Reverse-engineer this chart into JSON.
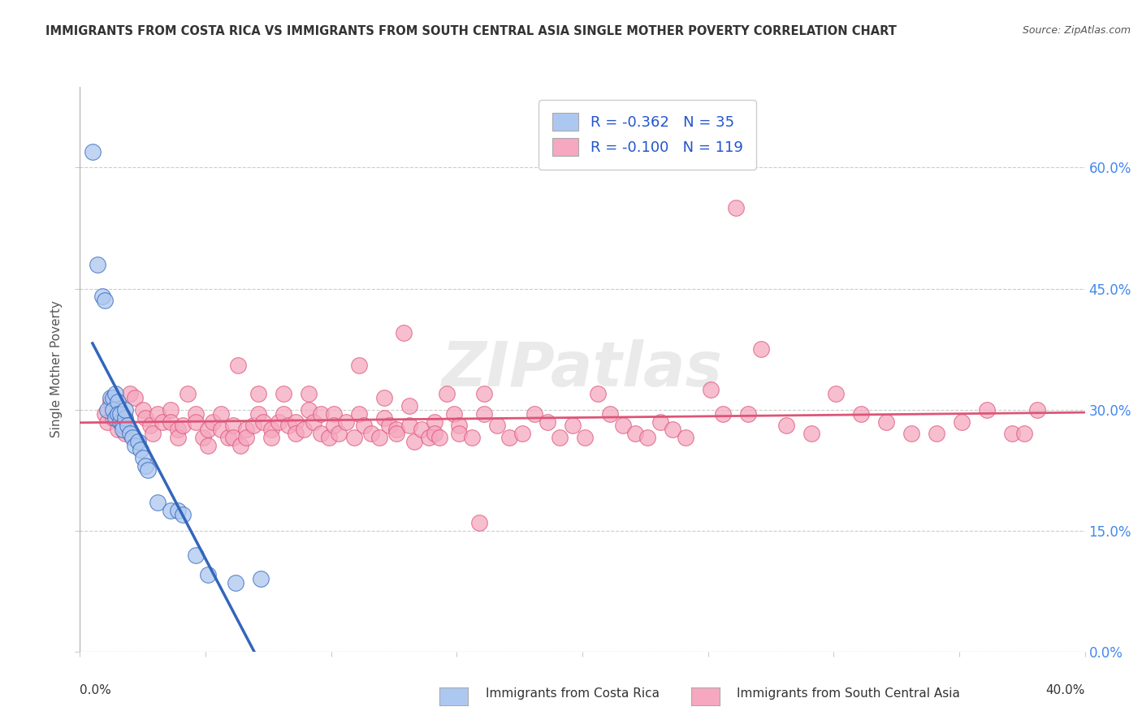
{
  "title": "IMMIGRANTS FROM COSTA RICA VS IMMIGRANTS FROM SOUTH CENTRAL ASIA SINGLE MOTHER POVERTY CORRELATION CHART",
  "source": "Source: ZipAtlas.com",
  "ylabel": "Single Mother Poverty",
  "legend_label_blue": "Immigrants from Costa Rica",
  "legend_label_pink": "Immigrants from South Central Asia",
  "legend_R_blue": "-0.362",
  "legend_N_blue": "35",
  "legend_R_pink": "-0.100",
  "legend_N_pink": "119",
  "watermark": "ZIPatlas",
  "blue_color": "#adc8f0",
  "pink_color": "#f5a8c0",
  "blue_line_color": "#3366bb",
  "pink_line_color": "#dd5577",
  "blue_scatter": [
    [
      0.5,
      62.0
    ],
    [
      0.7,
      48.0
    ],
    [
      0.9,
      44.0
    ],
    [
      1.0,
      43.5
    ],
    [
      1.1,
      30.0
    ],
    [
      1.2,
      31.5
    ],
    [
      1.3,
      31.5
    ],
    [
      1.4,
      32.0
    ],
    [
      1.3,
      30.0
    ],
    [
      1.4,
      29.0
    ],
    [
      1.5,
      31.0
    ],
    [
      1.5,
      29.5
    ],
    [
      1.6,
      28.5
    ],
    [
      1.6,
      29.5
    ],
    [
      1.7,
      28.0
    ],
    [
      1.7,
      27.5
    ],
    [
      1.8,
      29.0
    ],
    [
      1.8,
      30.0
    ],
    [
      1.9,
      28.0
    ],
    [
      2.0,
      27.0
    ],
    [
      2.1,
      26.5
    ],
    [
      2.2,
      25.5
    ],
    [
      2.3,
      26.0
    ],
    [
      2.4,
      25.0
    ],
    [
      2.5,
      24.0
    ],
    [
      2.6,
      23.0
    ],
    [
      2.7,
      22.5
    ],
    [
      3.1,
      18.5
    ],
    [
      3.6,
      17.5
    ],
    [
      3.9,
      17.5
    ],
    [
      4.1,
      17.0
    ],
    [
      4.6,
      12.0
    ],
    [
      5.1,
      9.5
    ],
    [
      6.2,
      8.5
    ],
    [
      7.2,
      9.0
    ]
  ],
  "pink_scatter": [
    [
      1.0,
      29.5
    ],
    [
      1.1,
      28.5
    ],
    [
      1.2,
      31.0
    ],
    [
      1.3,
      29.0
    ],
    [
      1.5,
      27.5
    ],
    [
      1.8,
      28.5
    ],
    [
      1.8,
      27.0
    ],
    [
      2.0,
      32.0
    ],
    [
      2.2,
      31.5
    ],
    [
      2.5,
      30.0
    ],
    [
      2.6,
      29.0
    ],
    [
      2.8,
      28.0
    ],
    [
      2.9,
      27.0
    ],
    [
      3.1,
      29.5
    ],
    [
      3.3,
      28.5
    ],
    [
      3.6,
      30.0
    ],
    [
      3.6,
      28.5
    ],
    [
      3.9,
      27.5
    ],
    [
      3.9,
      26.5
    ],
    [
      4.1,
      28.0
    ],
    [
      4.3,
      32.0
    ],
    [
      4.6,
      29.5
    ],
    [
      4.6,
      28.5
    ],
    [
      4.9,
      26.5
    ],
    [
      5.1,
      27.5
    ],
    [
      5.1,
      25.5
    ],
    [
      5.3,
      28.5
    ],
    [
      5.6,
      29.5
    ],
    [
      5.6,
      27.5
    ],
    [
      5.9,
      26.5
    ],
    [
      6.1,
      28.0
    ],
    [
      6.1,
      26.5
    ],
    [
      6.3,
      35.5
    ],
    [
      6.4,
      25.5
    ],
    [
      6.6,
      27.5
    ],
    [
      6.6,
      26.5
    ],
    [
      6.9,
      28.0
    ],
    [
      7.1,
      32.0
    ],
    [
      7.1,
      29.5
    ],
    [
      7.3,
      28.5
    ],
    [
      7.6,
      27.5
    ],
    [
      7.6,
      26.5
    ],
    [
      7.9,
      28.5
    ],
    [
      8.1,
      32.0
    ],
    [
      8.1,
      29.5
    ],
    [
      8.3,
      28.0
    ],
    [
      8.6,
      28.5
    ],
    [
      8.6,
      27.0
    ],
    [
      8.9,
      27.5
    ],
    [
      9.1,
      32.0
    ],
    [
      9.1,
      30.0
    ],
    [
      9.3,
      28.5
    ],
    [
      9.6,
      29.5
    ],
    [
      9.6,
      27.0
    ],
    [
      9.9,
      26.5
    ],
    [
      10.1,
      29.5
    ],
    [
      10.1,
      28.0
    ],
    [
      10.3,
      27.0
    ],
    [
      10.6,
      28.5
    ],
    [
      10.9,
      26.5
    ],
    [
      11.1,
      35.5
    ],
    [
      11.1,
      29.5
    ],
    [
      11.3,
      28.0
    ],
    [
      11.6,
      27.0
    ],
    [
      11.9,
      26.5
    ],
    [
      12.1,
      31.5
    ],
    [
      12.1,
      29.0
    ],
    [
      12.3,
      28.0
    ],
    [
      12.6,
      27.5
    ],
    [
      12.6,
      27.0
    ],
    [
      12.9,
      39.5
    ],
    [
      13.1,
      30.5
    ],
    [
      13.1,
      28.0
    ],
    [
      13.3,
      26.0
    ],
    [
      13.6,
      27.5
    ],
    [
      13.9,
      26.5
    ],
    [
      14.1,
      28.5
    ],
    [
      14.1,
      27.0
    ],
    [
      14.3,
      26.5
    ],
    [
      14.6,
      32.0
    ],
    [
      14.9,
      29.5
    ],
    [
      15.1,
      28.0
    ],
    [
      15.1,
      27.0
    ],
    [
      15.6,
      26.5
    ],
    [
      15.9,
      16.0
    ],
    [
      16.1,
      32.0
    ],
    [
      16.1,
      29.5
    ],
    [
      16.6,
      28.0
    ],
    [
      17.1,
      26.5
    ],
    [
      17.6,
      27.0
    ],
    [
      18.1,
      29.5
    ],
    [
      18.6,
      28.5
    ],
    [
      19.1,
      26.5
    ],
    [
      19.6,
      28.0
    ],
    [
      20.1,
      26.5
    ],
    [
      20.6,
      32.0
    ],
    [
      21.1,
      29.5
    ],
    [
      21.6,
      28.0
    ],
    [
      22.1,
      27.0
    ],
    [
      22.6,
      26.5
    ],
    [
      23.1,
      28.5
    ],
    [
      23.6,
      27.5
    ],
    [
      24.1,
      26.5
    ],
    [
      25.1,
      32.5
    ],
    [
      25.6,
      29.5
    ],
    [
      26.1,
      55.0
    ],
    [
      26.6,
      29.5
    ],
    [
      27.1,
      37.5
    ],
    [
      28.1,
      28.0
    ],
    [
      29.1,
      27.0
    ],
    [
      30.1,
      32.0
    ],
    [
      31.1,
      29.5
    ],
    [
      32.1,
      28.5
    ],
    [
      33.1,
      27.0
    ],
    [
      34.1,
      27.0
    ],
    [
      35.1,
      28.5
    ],
    [
      36.1,
      30.0
    ],
    [
      37.1,
      27.0
    ],
    [
      37.6,
      27.0
    ],
    [
      38.1,
      30.0
    ]
  ],
  "xmin": 0.0,
  "xmax": 40.0,
  "ymin": 0.0,
  "ymax": 70.0,
  "y_tick_vals": [
    0.0,
    15.0,
    30.0,
    45.0,
    60.0
  ],
  "y_tick_labels": [
    "0.0%",
    "15.0%",
    "30.0%",
    "45.0%",
    "60.0%"
  ],
  "grid_color": "#cccccc",
  "background_color": "#ffffff",
  "blue_trend_start_x": 0.5,
  "blue_trend_end_x": 7.2,
  "pink_trend_start_x": 0.0,
  "pink_trend_end_x": 40.0
}
